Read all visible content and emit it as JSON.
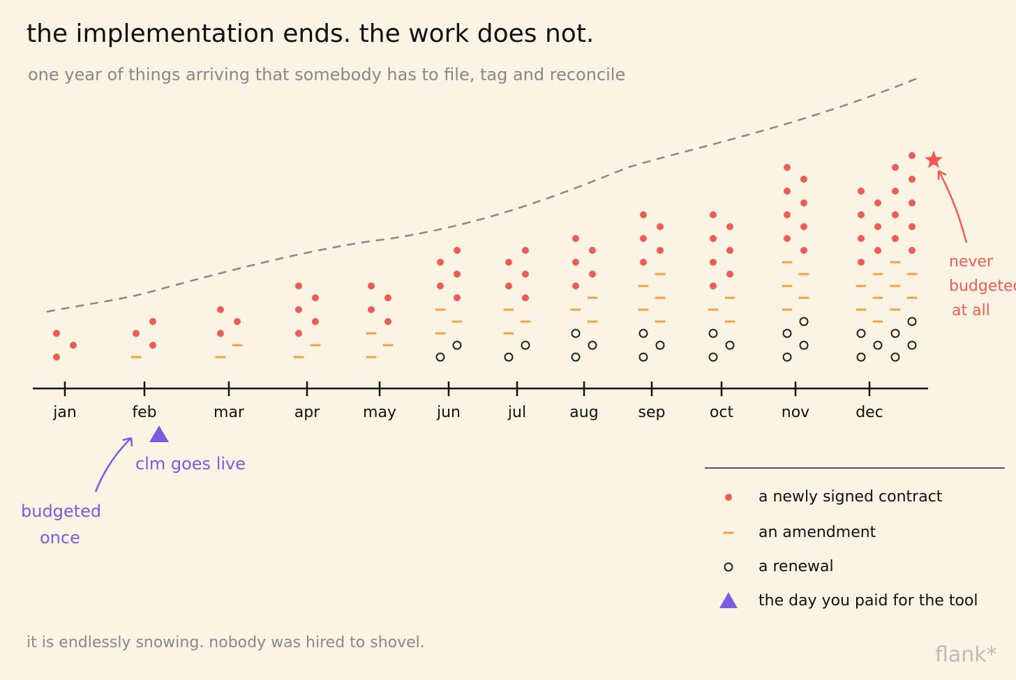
{
  "chart_data": {
    "type": "dotstack",
    "title": "the implementation ends. the work does not.",
    "subtitle": "one year of things arriving that somebody has to file, tag and reconcile",
    "categories": [
      "jan",
      "feb",
      "mar",
      "apr",
      "may",
      "jun",
      "jul",
      "aug",
      "sep",
      "oct",
      "nov",
      "dec",
      null
    ],
    "series": [
      {
        "name": "a newly signed contract",
        "color": "#ef5b55",
        "values": [
          3,
          3,
          3,
          5,
          4,
          5,
          5,
          5,
          5,
          7,
          8,
          7,
          9
        ]
      },
      {
        "name": "an amendment",
        "color": "#f5a142",
        "values": [
          0,
          1,
          2,
          2,
          3,
          3,
          3,
          3,
          5,
          3,
          5,
          5,
          5
        ]
      },
      {
        "name": "a renewal",
        "color": "#222222",
        "values": [
          0,
          0,
          0,
          0,
          0,
          2,
          2,
          3,
          3,
          3,
          4,
          3,
          4
        ]
      }
    ],
    "marker": {
      "name": "the day you paid for the tool",
      "color": "#7b5ce0"
    },
    "annotations": {
      "live": "clm goes live",
      "budgeted_once": [
        "budgeted",
        "once"
      ],
      "never_budgeted": [
        "never",
        "budgeted",
        "at all"
      ]
    },
    "footer": "it is endlessly snowing. nobody was hired to shovel.",
    "signature": "flank*"
  }
}
